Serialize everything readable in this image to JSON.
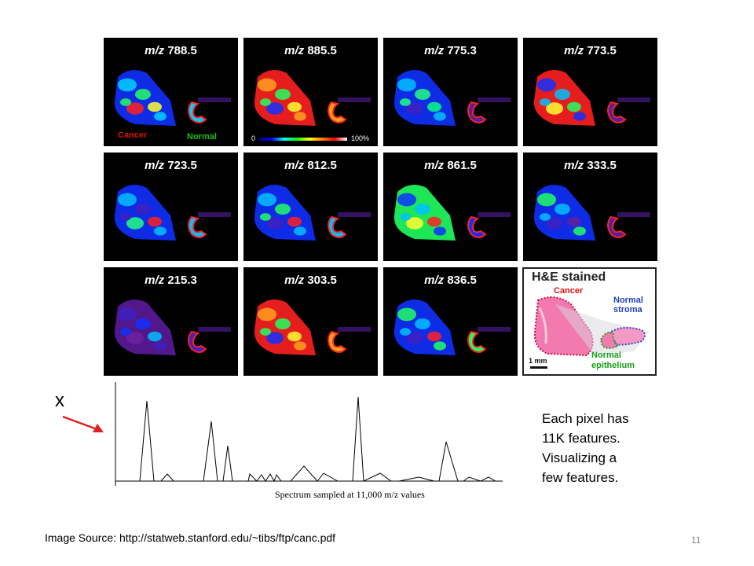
{
  "panels": [
    {
      "prefix": "m/z",
      "value": "788.5"
    },
    {
      "prefix": "m/z",
      "value": "885.5"
    },
    {
      "prefix": "m/z",
      "value": "775.3"
    },
    {
      "prefix": "m/z",
      "value": "773.5"
    },
    {
      "prefix": "m/z",
      "value": "723.5"
    },
    {
      "prefix": "m/z",
      "value": "812.5"
    },
    {
      "prefix": "m/z",
      "value": "861.5"
    },
    {
      "prefix": "m/z",
      "value": "333.5"
    },
    {
      "prefix": "m/z",
      "value": "215.3"
    },
    {
      "prefix": "m/z",
      "value": "303.5"
    },
    {
      "prefix": "m/z",
      "value": "836.5"
    }
  ],
  "panel_labels": {
    "cancer": "Cancer",
    "normal": "Normal",
    "colorbar_min": "0",
    "colorbar_max": "100%"
  },
  "he_panel": {
    "title": "H&E stained",
    "cancer": "Cancer",
    "normal_stroma_1": "Normal",
    "normal_stroma_2": "stroma",
    "normal_epi_1": "Normal",
    "normal_epi_2": "epithelium",
    "scale": "1 mm"
  },
  "x_label": "x",
  "spectrum_caption": "Spectrum sampled at 11,000 m/z values",
  "side_text": [
    "Each pixel has",
    "11K features.",
    "Visualizing a",
    "few features."
  ],
  "source": "Image Source: http://statweb.stanford.edu/~tibs/ftp/canc.pdf",
  "page_number": "11",
  "colors": {
    "arrow": "#e02020",
    "cancer": "#e01010",
    "normal": "#18c018",
    "stroma": "#2040c0"
  }
}
